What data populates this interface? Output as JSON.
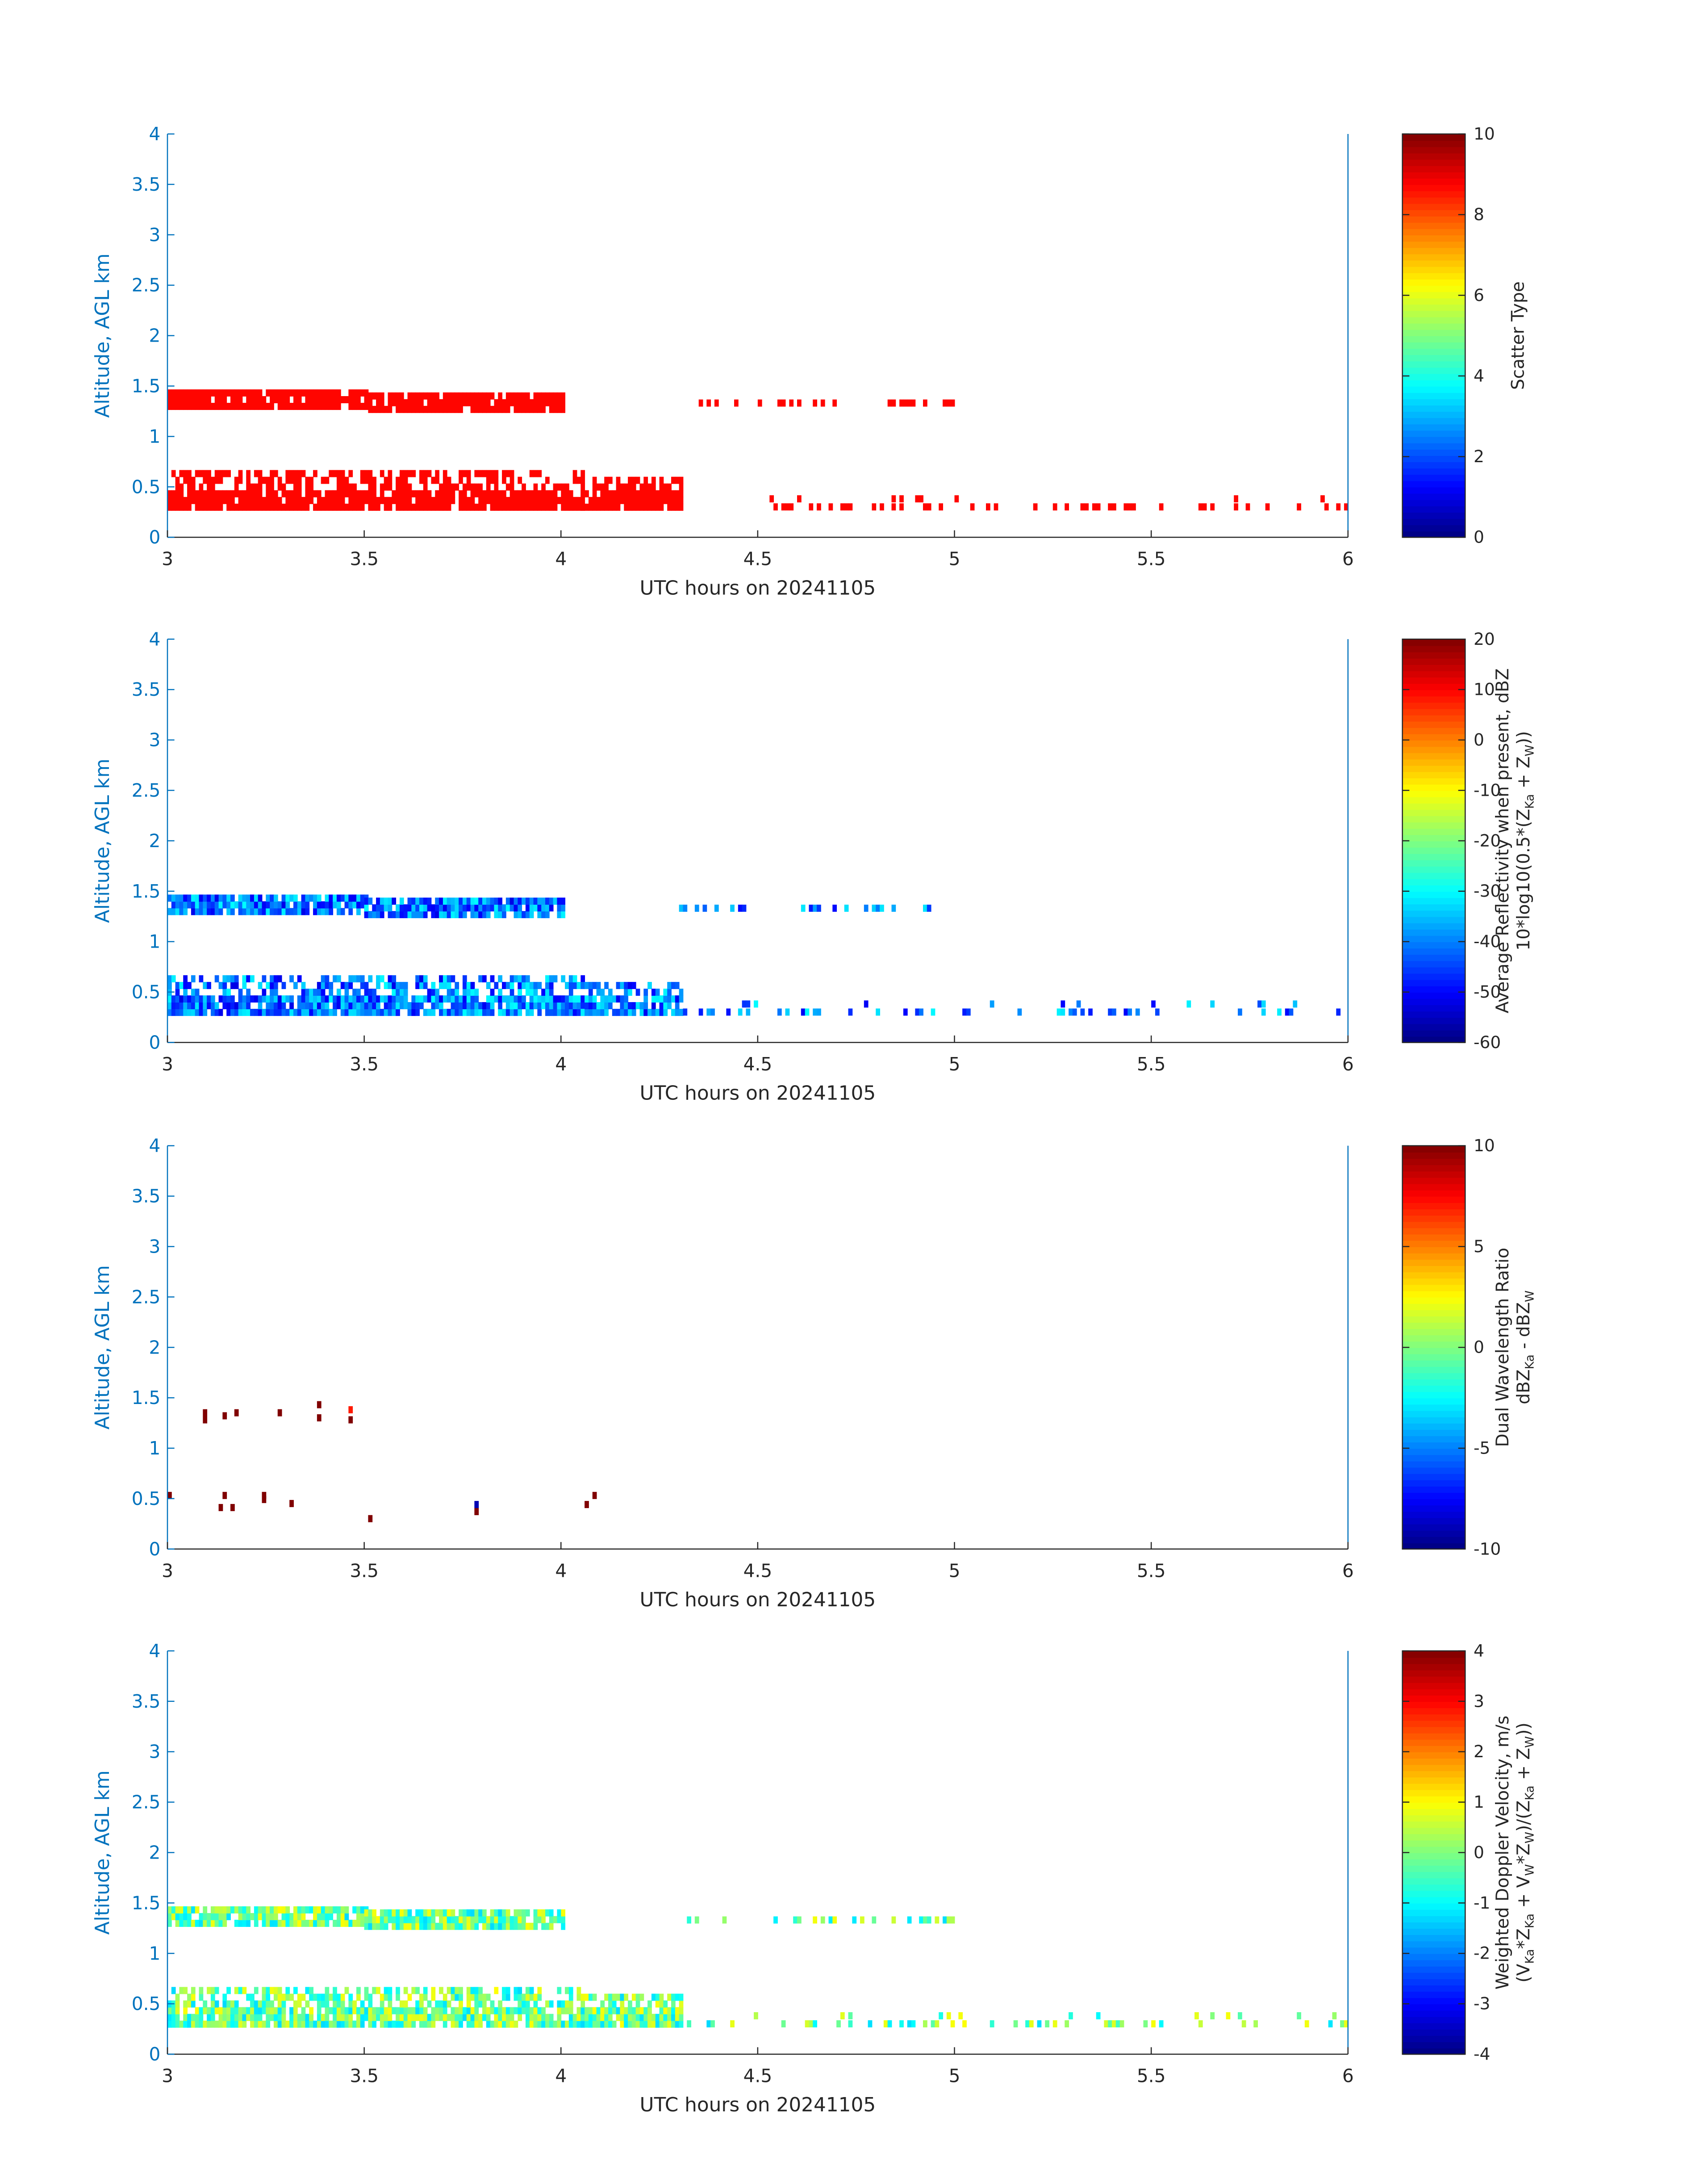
{
  "chart_data": [
    {
      "type": "heatmap",
      "x_label": "UTC hours on 20241105",
      "y_label": "Altitude, AGL km",
      "x_ticks": [
        "3",
        "3.5",
        "4",
        "4.5",
        "5",
        "5.5",
        "6"
      ],
      "y_ticks": [
        "0",
        "0.5",
        "1",
        "1.5",
        "2",
        "2.5",
        "3",
        "3.5",
        "4"
      ],
      "xlim": [
        3,
        6
      ],
      "ylim": [
        0,
        4
      ],
      "colorbar_label_lines": [
        "Scatter Type"
      ],
      "colorbar_ticks": [
        "0",
        "2",
        "4",
        "6",
        "8",
        "10"
      ],
      "clim": [
        0,
        10
      ],
      "colormap": "jet",
      "value_fill": 8.7,
      "regions": [
        {
          "t0": 3.0,
          "t1": 4.05,
          "z0": 0.2,
          "z1": 0.55
        },
        {
          "t0": 4.05,
          "t1": 4.3,
          "z0": 0.2,
          "z1": 0.5
        },
        {
          "t0": 3.0,
          "t1": 3.5,
          "z0": 1.2,
          "z1": 1.35
        },
        {
          "t0": 3.5,
          "t1": 4.0,
          "z0": 1.17,
          "z1": 1.33
        }
      ]
    },
    {
      "type": "heatmap",
      "x_label": "UTC hours on 20241105",
      "y_label": "Altitude, AGL km",
      "x_ticks": [
        "3",
        "3.5",
        "4",
        "4.5",
        "5",
        "5.5",
        "6"
      ],
      "y_ticks": [
        "0",
        "0.5",
        "1",
        "1.5",
        "2",
        "2.5",
        "3",
        "3.5",
        "4"
      ],
      "xlim": [
        3,
        6
      ],
      "ylim": [
        0,
        4
      ],
      "colorbar_label_lines": [
        "Average Reflectivity when present, dBZ",
        "10*log10(0.5*(Z_Ka + Z_W))"
      ],
      "colorbar_ticks": [
        "-60",
        "-50",
        "-40",
        "-30",
        "-20",
        "-10",
        "0",
        "10",
        "20"
      ],
      "clim": [
        -60,
        20
      ],
      "colormap": "jet",
      "value_range": [
        -52,
        -30
      ],
      "regions": [
        {
          "t0": 3.0,
          "t1": 4.05,
          "z0": 0.2,
          "z1": 0.55
        },
        {
          "t0": 4.05,
          "t1": 4.3,
          "z0": 0.2,
          "z1": 0.5
        },
        {
          "t0": 3.0,
          "t1": 3.5,
          "z0": 1.2,
          "z1": 1.35
        },
        {
          "t0": 3.5,
          "t1": 4.0,
          "z0": 1.17,
          "z1": 1.33
        }
      ]
    },
    {
      "type": "heatmap",
      "x_label": "UTC hours on 20241105",
      "y_label": "Altitude, AGL km",
      "x_ticks": [
        "3",
        "3.5",
        "4",
        "4.5",
        "5",
        "5.5",
        "6"
      ],
      "y_ticks": [
        "0",
        "0.5",
        "1",
        "1.5",
        "2",
        "2.5",
        "3",
        "3.5",
        "4"
      ],
      "xlim": [
        3,
        6
      ],
      "ylim": [
        0,
        4
      ],
      "colorbar_label_lines": [
        "Dual Wavelength Ratio",
        "dBZ_Ka - dBZ_W"
      ],
      "colorbar_ticks": [
        "-10",
        "-5",
        "0",
        "5",
        "10"
      ],
      "clim": [
        -10,
        10
      ],
      "colormap": "jet",
      "cells": [
        {
          "t": 3.0,
          "z": 0.5,
          "v": 10
        },
        {
          "t": 3.09,
          "z": 1.25,
          "v": 10
        },
        {
          "t": 3.09,
          "z": 1.32,
          "v": 10
        },
        {
          "t": 3.13,
          "z": 0.38,
          "v": 10
        },
        {
          "t": 3.14,
          "z": 1.29,
          "v": 10
        },
        {
          "t": 3.14,
          "z": 0.5,
          "v": 10
        },
        {
          "t": 3.16,
          "z": 0.38,
          "v": 10
        },
        {
          "t": 3.17,
          "z": 1.32,
          "v": 10
        },
        {
          "t": 3.24,
          "z": 0.5,
          "v": 10
        },
        {
          "t": 3.24,
          "z": 0.46,
          "v": 10
        },
        {
          "t": 3.28,
          "z": 1.32,
          "v": 10
        },
        {
          "t": 3.31,
          "z": 0.42,
          "v": 10
        },
        {
          "t": 3.38,
          "z": 1.27,
          "v": 10
        },
        {
          "t": 3.38,
          "z": 1.4,
          "v": 10
        },
        {
          "t": 3.46,
          "z": 1.25,
          "v": 10
        },
        {
          "t": 3.46,
          "z": 1.35,
          "v": 7
        },
        {
          "t": 3.51,
          "z": 0.27,
          "v": 10
        },
        {
          "t": 3.78,
          "z": 0.34,
          "v": 10
        },
        {
          "t": 3.78,
          "z": 0.41,
          "v": -9
        },
        {
          "t": 4.06,
          "z": 0.41,
          "v": 10
        },
        {
          "t": 4.08,
          "z": 0.5,
          "v": 10
        }
      ]
    },
    {
      "type": "heatmap",
      "x_label": "UTC hours on 20241105",
      "y_label": "Altitude, AGL km",
      "x_ticks": [
        "3",
        "3.5",
        "4",
        "4.5",
        "5",
        "5.5",
        "6"
      ],
      "y_ticks": [
        "0",
        "0.5",
        "1",
        "1.5",
        "2",
        "2.5",
        "3",
        "3.5",
        "4"
      ],
      "xlim": [
        3,
        6
      ],
      "ylim": [
        0,
        4
      ],
      "colorbar_label_lines": [
        "Weighted Doppler Velocity, m/s",
        "(V_Ka*Z_Ka + V_W*Z_W)/(Z_Ka + Z_W))"
      ],
      "colorbar_ticks": [
        "-4",
        "-3",
        "-2",
        "-1",
        "0",
        "1",
        "2",
        "3",
        "4"
      ],
      "clim": [
        -4,
        4
      ],
      "colormap": "jet",
      "value_range": [
        -1.3,
        1.0
      ],
      "regions": [
        {
          "t0": 3.0,
          "t1": 4.05,
          "z0": 0.2,
          "z1": 0.55
        },
        {
          "t0": 4.05,
          "t1": 4.3,
          "z0": 0.2,
          "z1": 0.5
        },
        {
          "t0": 3.0,
          "t1": 3.5,
          "z0": 1.2,
          "z1": 1.35
        },
        {
          "t0": 3.5,
          "t1": 4.0,
          "z0": 1.17,
          "z1": 1.33
        }
      ]
    }
  ]
}
